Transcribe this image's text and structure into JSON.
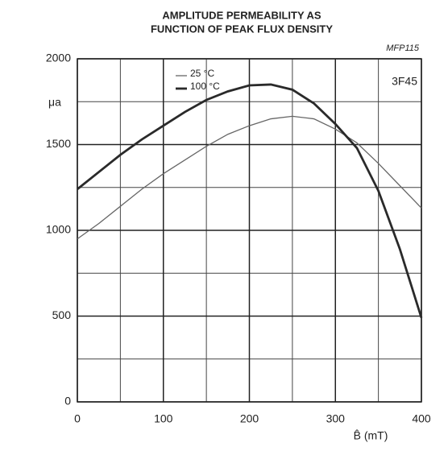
{
  "chart_data": {
    "type": "line",
    "title": [
      "AMPLITUDE PERMEABILITY AS",
      "FUNCTION OF PEAK FLUX DENSITY"
    ],
    "annotations": [
      "MFP115",
      "3F45"
    ],
    "y_label": "μa",
    "x_label": "B̂ (mT)",
    "x": [
      0,
      25,
      50,
      75,
      100,
      125,
      150,
      175,
      200,
      225,
      250,
      275,
      300,
      325,
      350,
      375,
      400
    ],
    "series": [
      {
        "name": "25 °C",
        "color": "#666666",
        "values": [
          950,
          1040,
          1140,
          1240,
          1330,
          1410,
          1490,
          1560,
          1610,
          1650,
          1665,
          1650,
          1590,
          1510,
          1390,
          1260,
          1130
        ]
      },
      {
        "name": "100 °C",
        "color": "#2a2a2a",
        "values": [
          1240,
          1340,
          1440,
          1530,
          1610,
          1690,
          1760,
          1810,
          1845,
          1850,
          1820,
          1740,
          1620,
          1480,
          1230,
          890,
          490
        ]
      }
    ],
    "xlim": [
      0,
      400
    ],
    "xticks": [
      0,
      100,
      200,
      300,
      400
    ],
    "ylim": [
      0,
      2000
    ],
    "yticks": [
      0,
      500,
      1000,
      1500,
      2000
    ],
    "grid": true,
    "legend": "top-left"
  }
}
